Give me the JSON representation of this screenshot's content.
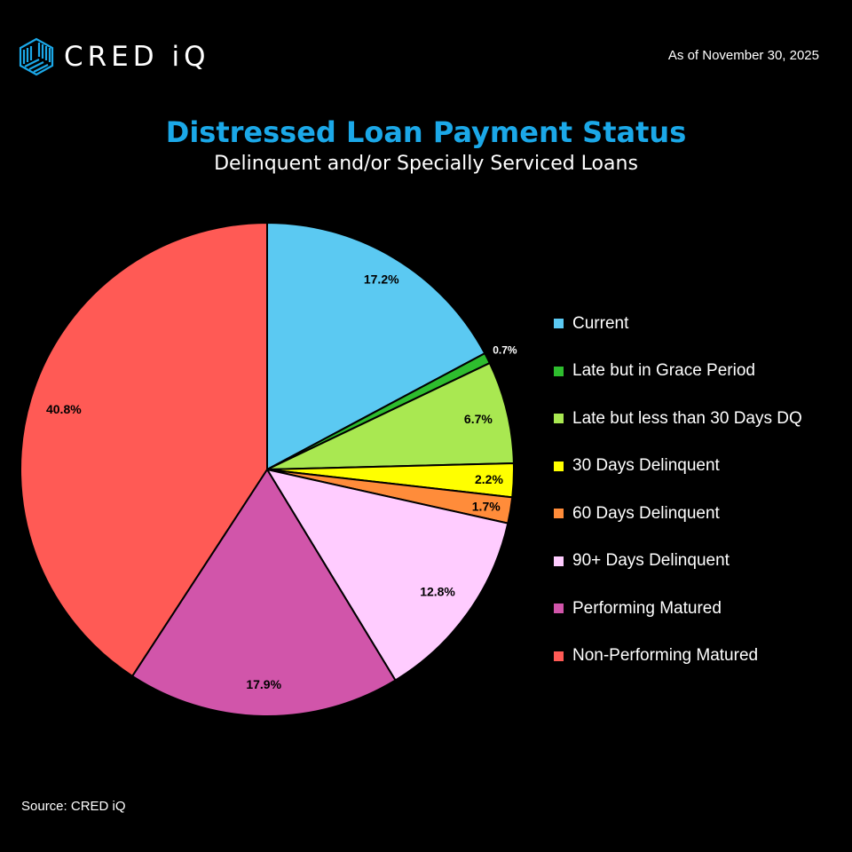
{
  "header": {
    "brand": "CRED iQ",
    "as_of": "As of November 30, 2025"
  },
  "footer": {
    "source": "Source: CRED iQ"
  },
  "chart_data": {
    "type": "pie",
    "title": "Distressed Loan Payment Status",
    "subtitle": "Delinquent and/or Specially Serviced Loans",
    "legend_position": "right",
    "start_angle": "12 o'clock, clockwise",
    "slices": [
      {
        "label": "Current",
        "value": 17.2,
        "display": "17.2%",
        "color": "#5bc9f2"
      },
      {
        "label": "Late but in Grace Period",
        "value": 0.7,
        "display": "0.7%",
        "color": "#2ebd2e"
      },
      {
        "label": "Late but less than 30 Days DQ",
        "value": 6.7,
        "display": "6.7%",
        "color": "#a9e851"
      },
      {
        "label": "30 Days Delinquent",
        "value": 2.2,
        "display": "2.2%",
        "color": "#ffff00"
      },
      {
        "label": "60 Days Delinquent",
        "value": 1.7,
        "display": "1.7%",
        "color": "#ff8c3a"
      },
      {
        "label": "90+ Days Delinquent",
        "value": 12.8,
        "display": "12.8%",
        "color": "#ffccff"
      },
      {
        "label": "Performing Matured",
        "value": 17.9,
        "display": "17.9%",
        "color": "#d155aa"
      },
      {
        "label": "Non-Performing Matured",
        "value": 40.8,
        "display": "40.8%",
        "color": "#ff5a55"
      }
    ]
  }
}
